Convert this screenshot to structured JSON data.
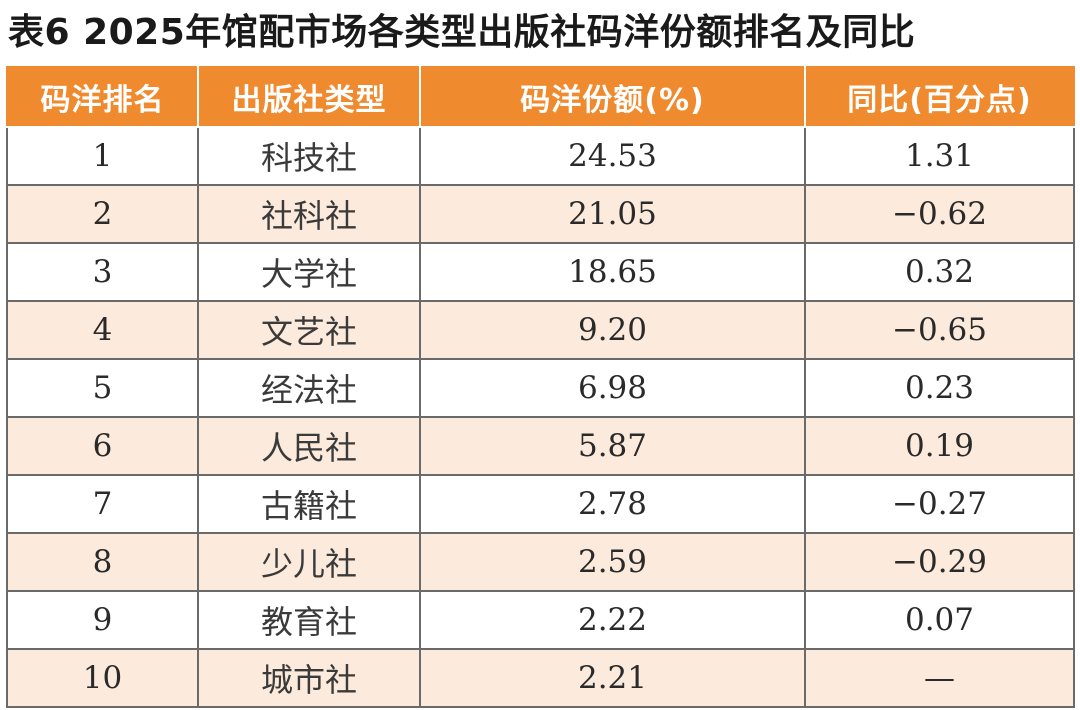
{
  "title": "表6  2025年馆配市场各类型出版社码洋份额排名及同比",
  "table": {
    "headers": [
      "码洋排名",
      "出版社类型",
      "码洋份额(%)",
      "同比(百分点)"
    ],
    "rows": [
      {
        "rank": "1",
        "type": "科技社",
        "share": "24.53",
        "yoy": "1.31"
      },
      {
        "rank": "2",
        "type": "社科社",
        "share": "21.05",
        "yoy": "−0.62"
      },
      {
        "rank": "3",
        "type": "大学社",
        "share": "18.65",
        "yoy": "0.32"
      },
      {
        "rank": "4",
        "type": "文艺社",
        "share": "9.20",
        "yoy": "−0.65"
      },
      {
        "rank": "5",
        "type": "经法社",
        "share": "6.98",
        "yoy": "0.23"
      },
      {
        "rank": "6",
        "type": "人民社",
        "share": "5.87",
        "yoy": "0.19"
      },
      {
        "rank": "7",
        "type": "古籍社",
        "share": "2.78",
        "yoy": "−0.27"
      },
      {
        "rank": "8",
        "type": "少儿社",
        "share": "2.59",
        "yoy": "−0.29"
      },
      {
        "rank": "9",
        "type": "教育社",
        "share": "2.22",
        "yoy": "0.07"
      },
      {
        "rank": "10",
        "type": "城市社",
        "share": "2.21",
        "yoy": "—"
      }
    ]
  },
  "colors": {
    "header_bg": "#f08a2e",
    "header_text": "#ffffff",
    "row_alt_bg": "#fcebdc",
    "row_bg": "#ffffff",
    "grid_line": "#6a6a6a"
  }
}
